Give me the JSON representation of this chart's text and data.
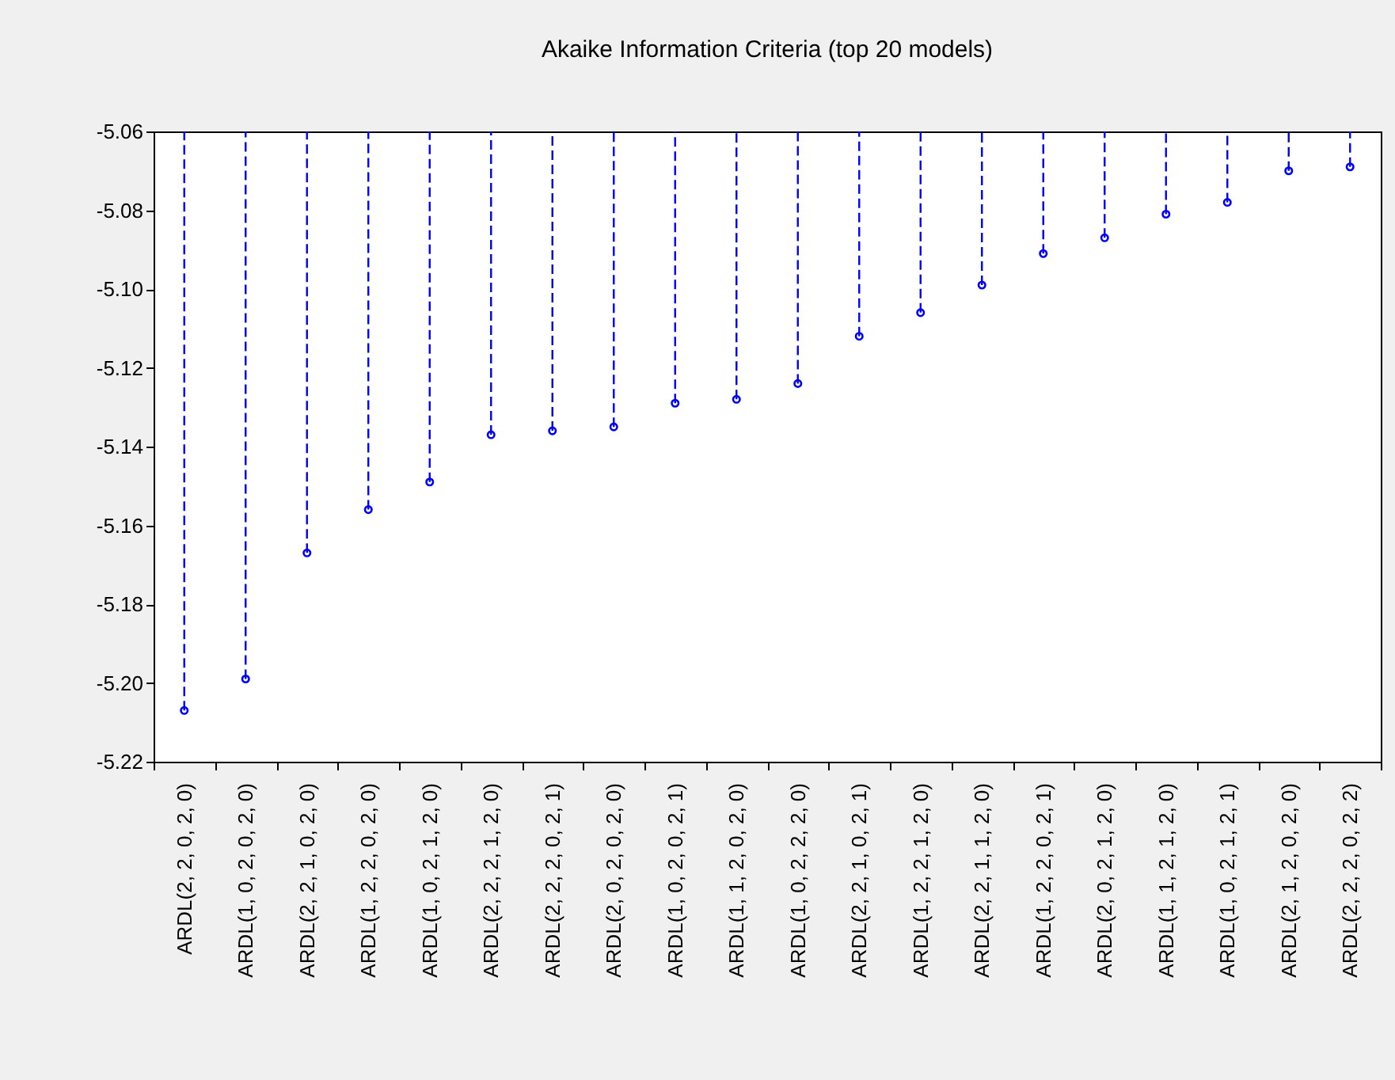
{
  "chart_data": {
    "type": "lollipop",
    "title": "Akaike Information Criteria (top 20 models)",
    "categories": [
      "ARDL(2, 2, 0, 2, 0)",
      "ARDL(1, 0, 2, 0, 2, 0)",
      "ARDL(2, 2, 1, 0, 2, 0)",
      "ARDL(1, 2, 2, 0, 2, 0)",
      "ARDL(1, 0, 2, 1, 2, 0)",
      "ARDL(2, 2, 2, 1, 2, 0)",
      "ARDL(2, 2, 2, 0, 2, 1)",
      "ARDL(2, 0, 2, 0, 2, 0)",
      "ARDL(1, 0, 2, 0, 2, 1)",
      "ARDL(1, 1, 2, 0, 2, 0)",
      "ARDL(1, 0, 2, 2, 2, 0)",
      "ARDL(2, 2, 1, 0, 2, 1)",
      "ARDL(1, 2, 2, 1, 2, 0)",
      "ARDL(2, 2, 1, 1, 2, 0)",
      "ARDL(1, 2, 2, 0, 2, 1)",
      "ARDL(2, 0, 2, 1, 2, 0)",
      "ARDL(1, 1, 2, 1, 2, 0)",
      "ARDL(1, 0, 2, 1, 2, 1)",
      "ARDL(2, 1, 2, 0, 2, 0)",
      "ARDL(2, 2, 2, 0, 2, 2)"
    ],
    "values": [
      -5.207,
      -5.199,
      -5.167,
      -5.156,
      -5.149,
      -5.137,
      -5.136,
      -5.135,
      -5.129,
      -5.128,
      -5.124,
      -5.112,
      -5.106,
      -5.099,
      -5.091,
      -5.087,
      -5.081,
      -5.078,
      -5.07,
      -5.069
    ],
    "color": "#0000ff",
    "ylim": [
      -5.22,
      -5.06
    ],
    "yticks": [
      {
        "value": -5.22,
        "label": "-5.22"
      },
      {
        "value": -5.2,
        "label": "-5.20"
      },
      {
        "value": -5.18,
        "label": "-5.18"
      },
      {
        "value": -5.16,
        "label": "-5.16"
      },
      {
        "value": -5.14,
        "label": "-5.14"
      },
      {
        "value": -5.12,
        "label": "-5.12"
      },
      {
        "value": -5.1,
        "label": "-5.10"
      },
      {
        "value": -5.08,
        "label": "-5.08"
      },
      {
        "value": -5.06,
        "label": "-5.06"
      }
    ],
    "marker": "circle",
    "line_style": "dashed"
  }
}
